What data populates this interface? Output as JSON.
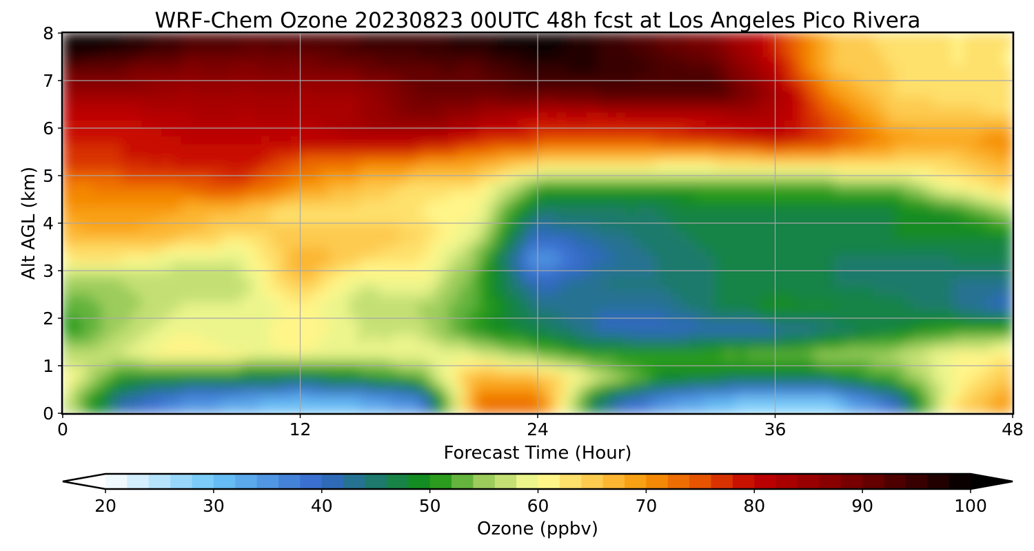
{
  "chart_data": {
    "type": "heatmap",
    "title": "WRF-Chem Ozone  20230823 00UTC 48h fcst at Los Angeles Pico Rivera",
    "xlabel": "Forecast Time (Hour)",
    "ylabel": "Alt AGL (km)",
    "xlim": [
      0,
      48
    ],
    "ylim": [
      0,
      8
    ],
    "x_ticks": [
      "0",
      "12",
      "24",
      "36",
      "48"
    ],
    "y_ticks": [
      "0",
      "1",
      "2",
      "3",
      "4",
      "5",
      "6",
      "7",
      "8"
    ],
    "grid": true,
    "x": [
      0,
      3,
      6,
      9,
      12,
      15,
      18,
      21,
      24,
      27,
      30,
      33,
      36,
      39,
      42,
      45,
      48
    ],
    "y": [
      0.25,
      0.75,
      1.25,
      1.75,
      2.25,
      2.75,
      3.25,
      3.75,
      4.25,
      4.75,
      5.25,
      5.75,
      6.25,
      6.75,
      7.25,
      7.75
    ],
    "z": [
      [
        58,
        42,
        36,
        33,
        30,
        32,
        36,
        72,
        74,
        45,
        36,
        31,
        28,
        30,
        40,
        62,
        70
      ],
      [
        62,
        50,
        48,
        48,
        47,
        49,
        52,
        68,
        66,
        58,
        50,
        48,
        47,
        48,
        52,
        60,
        66
      ],
      [
        56,
        58,
        62,
        60,
        60,
        58,
        60,
        58,
        54,
        50,
        50,
        52,
        52,
        55,
        56,
        60,
        62
      ],
      [
        50,
        56,
        60,
        58,
        62,
        58,
        57,
        50,
        47,
        42,
        40,
        41,
        42,
        45,
        48,
        51,
        52
      ],
      [
        52,
        55,
        58,
        58,
        61,
        57,
        56,
        52,
        44,
        42,
        42,
        46,
        49,
        48,
        47,
        44,
        40
      ],
      [
        55,
        56,
        57,
        57,
        66,
        58,
        60,
        52,
        40,
        44,
        44,
        46,
        47,
        46,
        45,
        44,
        43
      ],
      [
        62,
        62,
        58,
        58,
        68,
        64,
        62,
        54,
        34,
        41,
        44,
        46,
        47,
        46,
        45,
        46,
        46
      ],
      [
        67,
        68,
        66,
        63,
        65,
        66,
        64,
        58,
        40,
        43,
        45,
        47,
        47,
        47,
        48,
        48,
        49
      ],
      [
        69,
        70,
        68,
        66,
        62,
        63,
        62,
        60,
        45,
        46,
        46,
        47,
        47,
        47,
        48,
        50,
        56
      ],
      [
        72,
        72,
        74,
        75,
        70,
        66,
        63,
        62,
        52,
        50,
        51,
        52,
        52,
        52,
        53,
        60,
        64
      ],
      [
        76,
        78,
        78,
        80,
        74,
        72,
        70,
        68,
        64,
        63,
        62,
        62,
        63,
        64,
        64,
        64,
        68
      ],
      [
        78,
        78,
        80,
        80,
        80,
        82,
        82,
        78,
        76,
        75,
        76,
        77,
        80,
        76,
        70,
        68,
        72
      ],
      [
        80,
        80,
        82,
        82,
        82,
        84,
        88,
        84,
        80,
        80,
        80,
        82,
        82,
        74,
        66,
        65,
        64
      ],
      [
        84,
        85,
        84,
        84,
        84,
        84,
        90,
        90,
        92,
        92,
        93,
        94,
        84,
        70,
        64,
        63,
        63
      ],
      [
        92,
        90,
        88,
        88,
        88,
        90,
        92,
        92,
        96,
        96,
        94,
        92,
        80,
        66,
        64,
        62,
        62
      ],
      [
        100,
        98,
        94,
        92,
        92,
        94,
        95,
        97,
        100,
        96,
        92,
        88,
        78,
        66,
        63,
        62,
        62
      ]
    ],
    "colorbar": {
      "label": "Ozone  (ppbv)",
      "min": 20,
      "max": 100,
      "step": 2,
      "ticks": [
        "20",
        "30",
        "40",
        "50",
        "60",
        "70",
        "80",
        "90",
        "100"
      ],
      "extend": "both",
      "stops": [
        {
          "v": 20,
          "c": "#ffffff"
        },
        {
          "v": 30,
          "c": "#6cc6f8"
        },
        {
          "v": 40,
          "c": "#3466cc"
        },
        {
          "v": 45,
          "c": "#1d7a6c"
        },
        {
          "v": 50,
          "c": "#109010"
        },
        {
          "v": 55,
          "c": "#9ccc5c"
        },
        {
          "v": 60,
          "c": "#ffff98"
        },
        {
          "v": 66,
          "c": "#fdc040"
        },
        {
          "v": 70,
          "c": "#f89606"
        },
        {
          "v": 75,
          "c": "#e65400"
        },
        {
          "v": 80,
          "c": "#c20000"
        },
        {
          "v": 90,
          "c": "#700000"
        },
        {
          "v": 100,
          "c": "#000000"
        }
      ]
    }
  }
}
